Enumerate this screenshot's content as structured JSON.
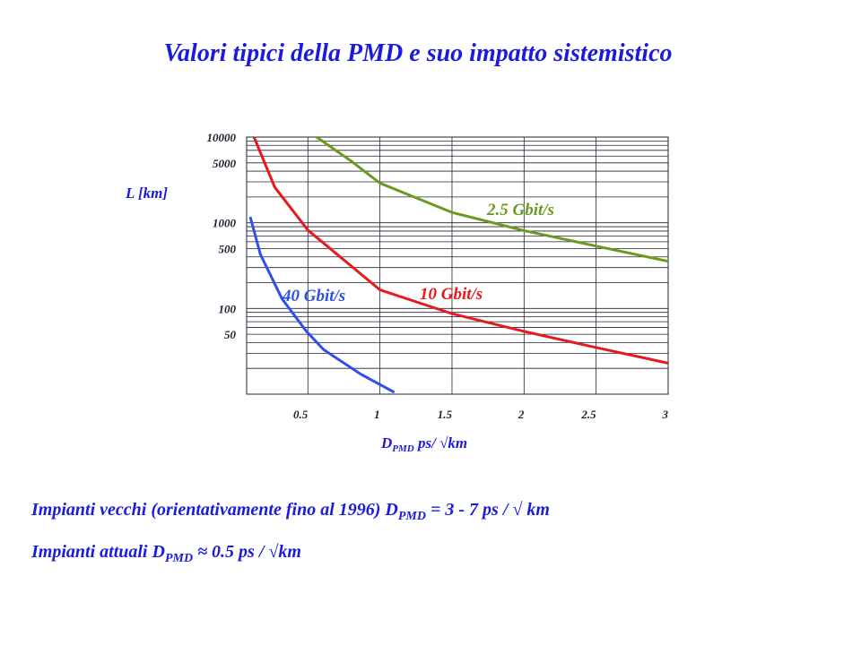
{
  "chart_data": {
    "type": "line",
    "title": "Valori tipici della PMD e suo impatto sistemistico",
    "ylabel": "L [km]",
    "xlabel": {
      "main": "D",
      "sub": "PMD",
      "rest": " ps/ √km"
    },
    "xlim": [
      0.075,
      3
    ],
    "xticks": [
      0.5,
      1,
      1.5,
      2,
      2.5,
      3
    ],
    "ylim": [
      10,
      10000
    ],
    "log_y": true,
    "grid": true,
    "yticks": [
      50,
      100,
      500,
      1000,
      5000,
      10000
    ],
    "yminorticks": [
      20,
      30,
      40,
      60,
      70,
      80,
      90,
      200,
      300,
      400,
      600,
      700,
      800,
      900,
      2000,
      3000,
      4000,
      6000,
      7000,
      8000,
      9000
    ],
    "series": [
      {
        "name": "2.5 Gbit/s",
        "color": "#6b9a1f",
        "x": [
          0.56,
          0.8,
          1,
          1.5,
          2,
          2.5,
          3
        ],
        "values": [
          10000,
          5250,
          2900,
          1320,
          810,
          535,
          355
        ]
      },
      {
        "name": "10 Gbit/s",
        "color": "#e8191c",
        "x": [
          0.126,
          0.27,
          0.5,
          1,
          1.5,
          2,
          2.5,
          3
        ],
        "values": [
          10000,
          2600,
          820,
          165,
          87,
          54,
          35,
          23
        ]
      },
      {
        "name": "40 Gbit/s",
        "color": "#2e4ff0",
        "x": [
          0.1,
          0.17,
          0.32,
          0.49,
          0.61,
          0.87,
          1.1
        ],
        "values": [
          1170,
          430,
          130,
          54,
          33,
          17,
          10.5
        ]
      }
    ]
  },
  "footer_lines": [
    {
      "main": "Impianti vecchi (orientativamente fino al 1996)  D",
      "sub": "PMD",
      "rest": " = 3 - 7 ps / √ km"
    },
    {
      "main": "Impianti attuali D",
      "sub": "PMD",
      "rest": " ≈ 0.5 ps / √km"
    }
  ]
}
